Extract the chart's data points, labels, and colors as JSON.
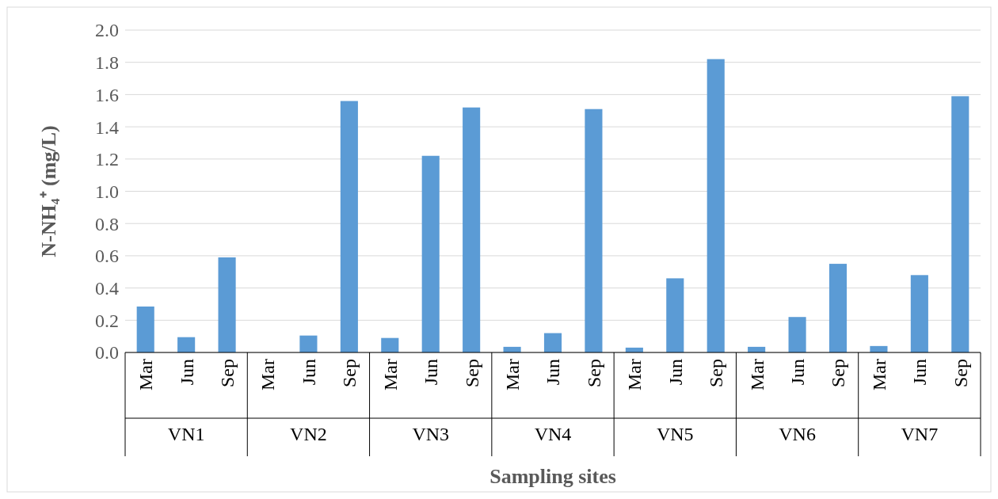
{
  "chart_data": {
    "type": "bar",
    "xlabel": "Sampling sites",
    "ylabel": "N-NH₄⁺ (mg/L)",
    "categories": [
      "Mar",
      "Jun",
      "Sep",
      "Mar",
      "Jun",
      "Sep",
      "Mar",
      "Jun",
      "Sep",
      "Mar",
      "Jun",
      "Sep",
      "Mar",
      "Jun",
      "Sep",
      "Mar",
      "Jun",
      "Sep",
      "Mar",
      "Jun",
      "Sep"
    ],
    "values": [
      0.285,
      0.095,
      0.59,
      null,
      0.105,
      1.56,
      0.09,
      1.22,
      1.52,
      0.035,
      0.12,
      1.51,
      0.03,
      0.46,
      1.82,
      0.035,
      0.22,
      0.55,
      0.04,
      0.48,
      1.59
    ],
    "color": "#5b9bd5",
    "annotations": [
      "VN1",
      "VN2",
      "VN3",
      "VN4",
      "VN5",
      "VN6",
      "VN7"
    ],
    "ylim": [
      0,
      2
    ],
    "yticks": [
      {
        "value": 0,
        "label": "0.0"
      },
      {
        "value": 0.2,
        "label": "0.2"
      },
      {
        "value": 0.4,
        "label": "0.4"
      },
      {
        "value": 0.6,
        "label": "0.6"
      },
      {
        "value": 0.8,
        "label": "0.8"
      },
      {
        "value": 1,
        "label": "1.0"
      },
      {
        "value": 1.2,
        "label": "1.2"
      },
      {
        "value": 1.4,
        "label": "1.4"
      },
      {
        "value": 1.6,
        "label": "1.6"
      },
      {
        "value": 1.8,
        "label": "1.8"
      },
      {
        "value": 2,
        "label": "2.0"
      }
    ],
    "grid": "y"
  }
}
